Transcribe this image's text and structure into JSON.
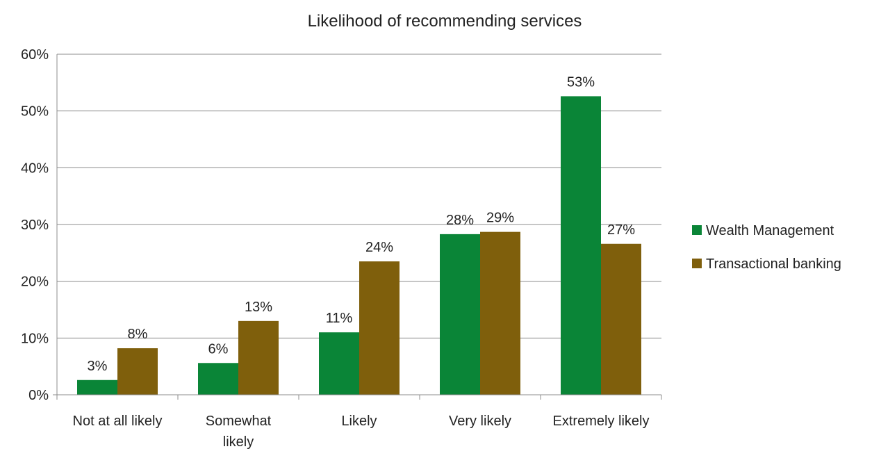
{
  "chart_data": {
    "type": "bar",
    "title": "Likelihood of recommending services",
    "categories": [
      "Not at all likely",
      "Somewhat likely",
      "Likely",
      "Very likely",
      "Extremely likely"
    ],
    "category_lines": [
      [
        "Not at all likely"
      ],
      [
        "Somewhat",
        "likely"
      ],
      [
        "Likely"
      ],
      [
        "Very likely"
      ],
      [
        "Extremely likely"
      ]
    ],
    "series": [
      {
        "name": "Wealth Management",
        "color": "#0a8537",
        "values": [
          0.026,
          0.056,
          0.11,
          0.283,
          0.526
        ],
        "labels": [
          "3%",
          "6%",
          "11%",
          "28%",
          "53%"
        ]
      },
      {
        "name": "Transactional banking",
        "color": "#7f5f0c",
        "values": [
          0.082,
          0.13,
          0.235,
          0.287,
          0.266
        ],
        "labels": [
          "8%",
          "13%",
          "24%",
          "29%",
          "27%"
        ]
      }
    ],
    "ylim": [
      0,
      0.6
    ],
    "yticks": [
      0,
      0.1,
      0.2,
      0.3,
      0.4,
      0.5,
      0.6
    ],
    "ytick_labels": [
      "0%",
      "10%",
      "20%",
      "30%",
      "40%",
      "50%",
      "60%"
    ],
    "grid": true,
    "legend_position": "right"
  }
}
